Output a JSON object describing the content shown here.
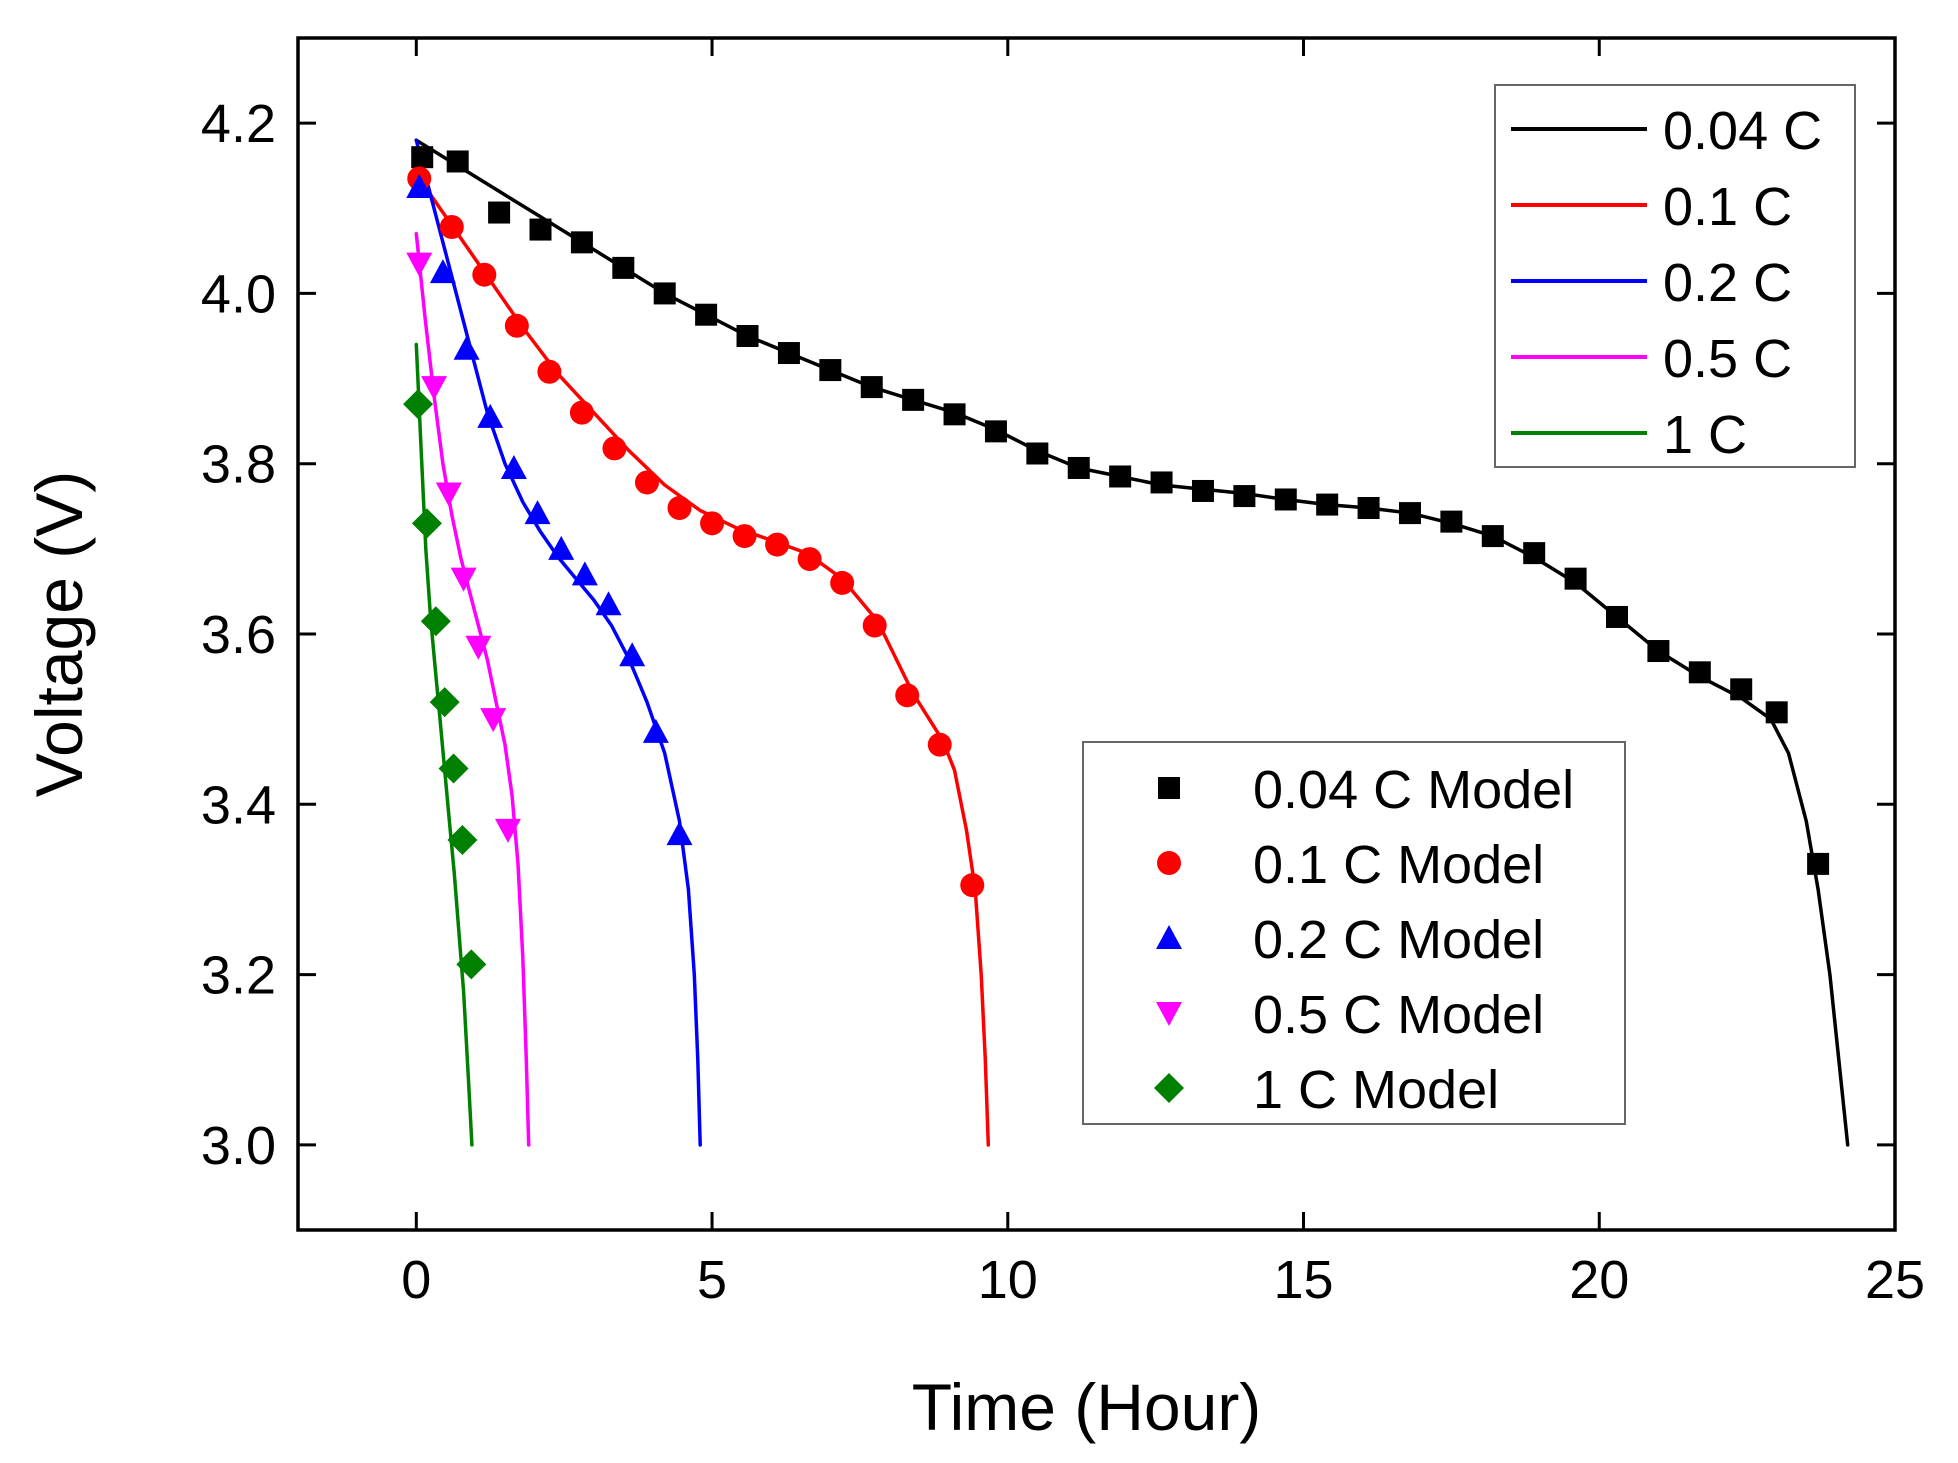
{
  "chart_data": {
    "type": "line",
    "title": "",
    "xlabel": "Time (Hour)",
    "ylabel": "Voltage (V)",
    "xlim": [
      -2,
      25
    ],
    "ylim": [
      2.9,
      4.3
    ],
    "xticks": [
      0,
      5,
      10,
      15,
      20,
      25
    ],
    "xtick_labels": [
      "0",
      "5",
      "10",
      "15",
      "20",
      "25"
    ],
    "yticks": [
      3.0,
      3.2,
      3.4,
      3.6,
      3.8,
      4.0,
      4.2
    ],
    "ytick_labels": [
      "3.0",
      "3.2",
      "3.4",
      "3.6",
      "3.8",
      "4.0",
      "4.2"
    ],
    "grid": false,
    "legends": [
      {
        "placement": "top-right",
        "entries": [
          "0.04 C",
          "0.1 C",
          "0.2 C",
          "0.5 C",
          "1 C"
        ]
      },
      {
        "placement": "lower-right",
        "entries": [
          "0.04 C Model",
          "0.1 C Model",
          "0.2 C Model",
          "0.5 C Model",
          "1 C Model"
        ]
      }
    ],
    "series": [
      {
        "name": "0.04 C",
        "kind": "line",
        "color": "#000000",
        "x": [
          0,
          0.7,
          1.4,
          2.1,
          2.8,
          3.5,
          4.2,
          4.9,
          5.6,
          6.3,
          7.0,
          7.7,
          8.4,
          9.1,
          9.8,
          10.5,
          11.2,
          11.9,
          12.6,
          13.3,
          14.0,
          14.7,
          15.4,
          16.1,
          16.8,
          17.5,
          18.2,
          18.9,
          19.6,
          20.3,
          21.0,
          21.7,
          22.4,
          22.9,
          23.2,
          23.5,
          23.7,
          23.9,
          24.05,
          24.2
        ],
        "y": [
          4.18,
          4.15,
          4.12,
          4.09,
          4.06,
          4.03,
          4.0,
          3.975,
          3.95,
          3.93,
          3.91,
          3.89,
          3.875,
          3.86,
          3.84,
          3.815,
          3.795,
          3.785,
          3.775,
          3.77,
          3.765,
          3.758,
          3.752,
          3.748,
          3.742,
          3.73,
          3.715,
          3.69,
          3.66,
          3.62,
          3.58,
          3.55,
          3.525,
          3.5,
          3.46,
          3.38,
          3.3,
          3.2,
          3.1,
          3.0
        ]
      },
      {
        "name": "0.1 C",
        "kind": "line",
        "color": "#ff0000",
        "x": [
          0,
          0.6,
          1.2,
          1.8,
          2.4,
          3.0,
          3.6,
          4.2,
          4.8,
          5.4,
          6.0,
          6.6,
          7.2,
          7.8,
          8.4,
          8.9,
          9.1,
          9.3,
          9.45,
          9.55,
          9.62,
          9.67
        ],
        "y": [
          4.14,
          4.08,
          4.02,
          3.96,
          3.905,
          3.86,
          3.815,
          3.775,
          3.745,
          3.725,
          3.71,
          3.695,
          3.665,
          3.615,
          3.53,
          3.475,
          3.44,
          3.37,
          3.3,
          3.2,
          3.1,
          3.0
        ]
      },
      {
        "name": "0.2 C",
        "kind": "line",
        "color": "#0000ff",
        "x": [
          0,
          0.3,
          0.6,
          0.9,
          1.2,
          1.5,
          1.8,
          2.1,
          2.4,
          2.7,
          3.0,
          3.3,
          3.6,
          3.9,
          4.2,
          4.45,
          4.6,
          4.7,
          4.76,
          4.8
        ],
        "y": [
          4.18,
          4.1,
          4.02,
          3.94,
          3.86,
          3.8,
          3.755,
          3.72,
          3.69,
          3.665,
          3.64,
          3.61,
          3.57,
          3.52,
          3.46,
          3.38,
          3.3,
          3.2,
          3.1,
          3.0
        ]
      },
      {
        "name": "0.5 C",
        "kind": "line",
        "color": "#ff00ff",
        "x": [
          0,
          0.15,
          0.3,
          0.45,
          0.6,
          0.75,
          0.9,
          1.05,
          1.2,
          1.35,
          1.5,
          1.62,
          1.72,
          1.8,
          1.86,
          1.9
        ],
        "y": [
          4.07,
          3.97,
          3.88,
          3.8,
          3.74,
          3.69,
          3.65,
          3.61,
          3.57,
          3.52,
          3.47,
          3.41,
          3.33,
          3.22,
          3.1,
          3.0
        ]
      },
      {
        "name": "1 C",
        "kind": "line",
        "color": "#008000",
        "x": [
          0,
          0.08,
          0.16,
          0.24,
          0.32,
          0.4,
          0.48,
          0.56,
          0.64,
          0.72,
          0.8,
          0.88,
          0.94
        ],
        "y": [
          3.94,
          3.82,
          3.7,
          3.62,
          3.56,
          3.5,
          3.44,
          3.38,
          3.32,
          3.25,
          3.18,
          3.08,
          3.0
        ]
      },
      {
        "name": "0.04 C Model",
        "kind": "marker",
        "marker": "square",
        "color": "#000000",
        "x": [
          0.1,
          0.7,
          1.4,
          2.1,
          2.8,
          3.5,
          4.2,
          4.9,
          5.6,
          6.3,
          7.0,
          7.7,
          8.4,
          9.1,
          9.8,
          10.5,
          11.2,
          11.9,
          12.6,
          13.3,
          14.0,
          14.7,
          15.4,
          16.1,
          16.8,
          17.5,
          18.2,
          18.9,
          19.6,
          20.3,
          21.0,
          21.7,
          22.4,
          23.0,
          23.7
        ],
        "y": [
          4.16,
          4.155,
          4.095,
          4.075,
          4.06,
          4.03,
          4.0,
          3.975,
          3.95,
          3.93,
          3.91,
          3.89,
          3.875,
          3.858,
          3.838,
          3.812,
          3.795,
          3.785,
          3.778,
          3.768,
          3.762,
          3.758,
          3.752,
          3.748,
          3.742,
          3.732,
          3.715,
          3.695,
          3.665,
          3.62,
          3.58,
          3.555,
          3.535,
          3.508,
          3.33
        ]
      },
      {
        "name": "0.1 C Model",
        "kind": "marker",
        "marker": "circle",
        "color": "#ff0000",
        "x": [
          0.05,
          0.6,
          1.15,
          1.7,
          2.25,
          2.8,
          3.35,
          3.9,
          4.45,
          5.0,
          5.55,
          6.1,
          6.65,
          7.2,
          7.75,
          8.3,
          8.85,
          9.4
        ],
        "y": [
          4.135,
          4.078,
          4.022,
          3.962,
          3.908,
          3.86,
          3.818,
          3.778,
          3.748,
          3.73,
          3.715,
          3.705,
          3.688,
          3.66,
          3.61,
          3.528,
          3.47,
          3.305
        ]
      },
      {
        "name": "0.2 C Model",
        "kind": "marker",
        "marker": "triangle-up",
        "color": "#0000ff",
        "x": [
          0.05,
          0.45,
          0.85,
          1.25,
          1.65,
          2.05,
          2.45,
          2.85,
          3.25,
          3.65,
          4.05,
          4.45
        ],
        "y": [
          4.125,
          4.025,
          3.935,
          3.855,
          3.795,
          3.742,
          3.7,
          3.67,
          3.635,
          3.575,
          3.485,
          3.365
        ]
      },
      {
        "name": "0.5 C Model",
        "kind": "marker",
        "marker": "triangle-down",
        "color": "#ff00ff",
        "x": [
          0.05,
          0.3,
          0.55,
          0.8,
          1.05,
          1.3,
          1.55
        ],
        "y": [
          4.035,
          3.89,
          3.765,
          3.665,
          3.585,
          3.5,
          3.37
        ]
      },
      {
        "name": "1 C Model",
        "kind": "marker",
        "marker": "diamond",
        "color": "#008000",
        "x": [
          0.03,
          0.18,
          0.33,
          0.48,
          0.63,
          0.78,
          0.93
        ],
        "y": [
          3.87,
          3.73,
          3.615,
          3.52,
          3.442,
          3.358,
          3.212
        ]
      }
    ]
  }
}
